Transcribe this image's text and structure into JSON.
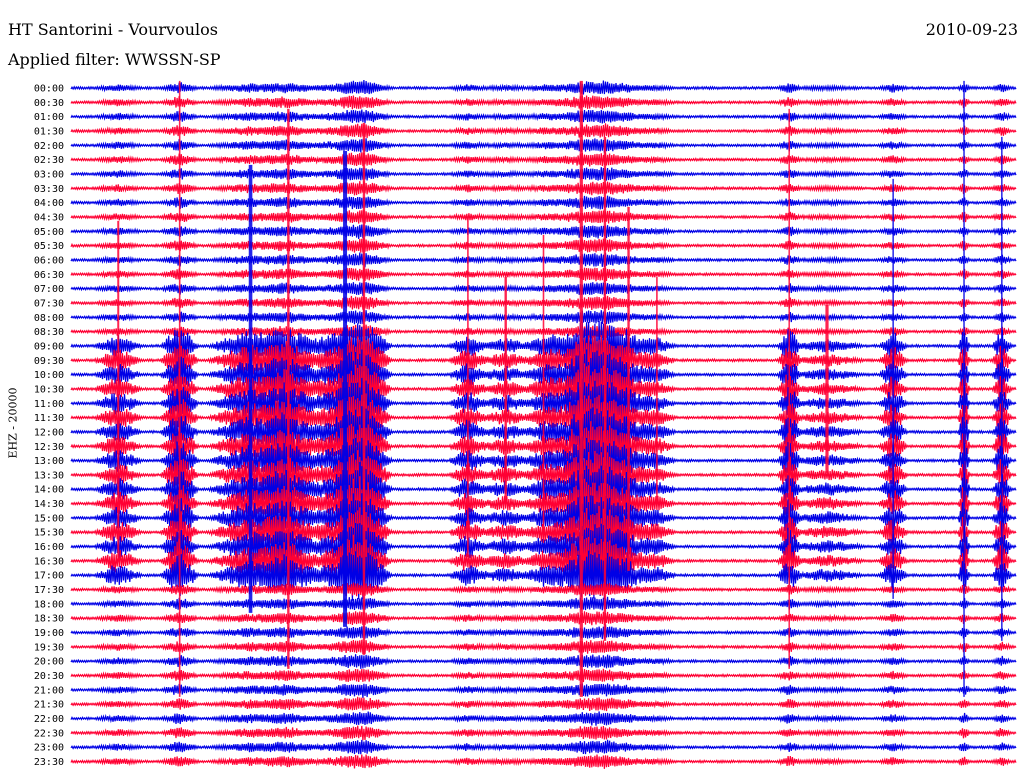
{
  "header": {
    "station": "HT Santorini - Vourvoulos",
    "date": "2010-09-23",
    "filter": "Applied filter: WWSSN-SP"
  },
  "channel_label": "EHZ - 20000",
  "colors": {
    "odd_trace": "#0000e6",
    "even_trace": "#ff0033",
    "text": "#000000",
    "background": "#ffffff"
  },
  "chart_data": {
    "type": "line",
    "title": "HT Santorini - Vourvoulos",
    "subtitle": "Applied filter: WWSSN-SP",
    "ylabel": "EHZ - 20000",
    "xlabel": "",
    "date": "2010-09-23",
    "grid": false,
    "row_interval_minutes": 30,
    "alternating_colors": [
      "#0000e6",
      "#ff0033"
    ],
    "y_tick_labels": [
      "00:00",
      "00:30",
      "01:00",
      "01:30",
      "02:00",
      "02:30",
      "03:00",
      "03:30",
      "04:00",
      "04:30",
      "05:00",
      "05:30",
      "06:00",
      "06:30",
      "07:00",
      "07:30",
      "08:00",
      "08:30",
      "09:00",
      "09:30",
      "10:00",
      "10:30",
      "11:00",
      "11:30",
      "12:00",
      "12:30",
      "13:00",
      "13:30",
      "14:00",
      "14:30",
      "15:00",
      "15:30",
      "16:00",
      "16:30",
      "17:00",
      "17:30",
      "18:00",
      "18:30",
      "19:00",
      "19:30",
      "20:00",
      "20:30",
      "21:00",
      "21:30",
      "22:00",
      "22:30",
      "23:00",
      "23:30"
    ],
    "events": [
      {
        "t": 0.05,
        "amp": 12,
        "width": 0.025,
        "color": "red"
      },
      {
        "t": 0.115,
        "amp": 22,
        "width": 0.02,
        "color": "red"
      },
      {
        "t": 0.19,
        "amp": 16,
        "width": 0.045,
        "color": "blue"
      },
      {
        "t": 0.23,
        "amp": 20,
        "width": 0.03,
        "color": "red"
      },
      {
        "t": 0.29,
        "amp": 17,
        "width": 0.05,
        "color": "blue"
      },
      {
        "t": 0.31,
        "amp": 19,
        "width": 0.03,
        "color": "red"
      },
      {
        "t": 0.42,
        "amp": 12,
        "width": 0.02,
        "color": "red"
      },
      {
        "t": 0.46,
        "amp": 8,
        "width": 0.03,
        "color": "red"
      },
      {
        "t": 0.5,
        "amp": 11,
        "width": 0.02,
        "color": "red"
      },
      {
        "t": 0.54,
        "amp": 22,
        "width": 0.04,
        "color": "red"
      },
      {
        "t": 0.565,
        "amp": 18,
        "width": 0.03,
        "color": "red"
      },
      {
        "t": 0.59,
        "amp": 13,
        "width": 0.03,
        "color": "red"
      },
      {
        "t": 0.62,
        "amp": 8,
        "width": 0.02,
        "color": "red"
      },
      {
        "t": 0.76,
        "amp": 20,
        "width": 0.012,
        "color": "red"
      },
      {
        "t": 0.8,
        "amp": 6,
        "width": 0.04,
        "color": "red"
      },
      {
        "t": 0.87,
        "amp": 15,
        "width": 0.015,
        "color": "blue"
      },
      {
        "t": 0.945,
        "amp": 22,
        "width": 0.006,
        "color": "blue"
      },
      {
        "t": 0.985,
        "amp": 18,
        "width": 0.01,
        "color": "blue"
      }
    ]
  }
}
